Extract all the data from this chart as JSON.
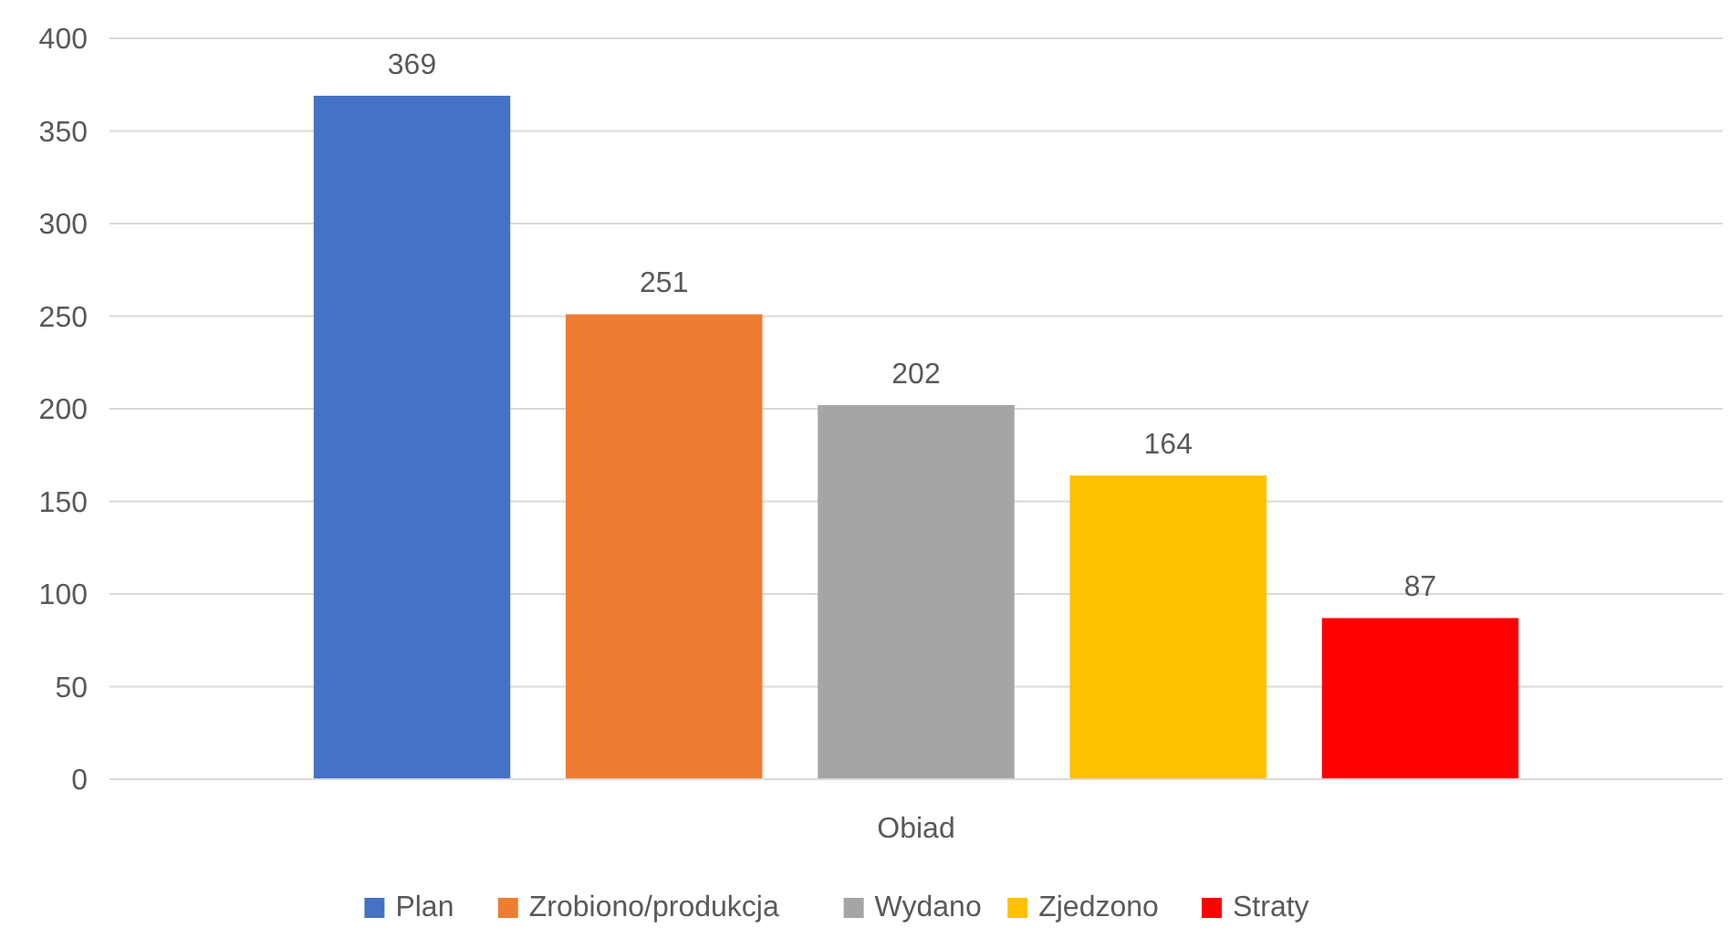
{
  "chart_data": {
    "type": "bar",
    "categories": [
      "Obiad"
    ],
    "series": [
      {
        "name": "Plan",
        "color": "#4472c4",
        "values": [
          369
        ]
      },
      {
        "name": "Zrobiono/produkcja",
        "color": "#ed7d31",
        "values": [
          251
        ]
      },
      {
        "name": "Wydano",
        "color": "#a5a5a5",
        "values": [
          202
        ]
      },
      {
        "name": "Zjedzono",
        "color": "#ffc000",
        "values": [
          164
        ]
      },
      {
        "name": "Straty",
        "color": "#ff0000",
        "values": [
          87
        ]
      }
    ],
    "ylim": [
      0,
      400
    ],
    "yticks": [
      0,
      50,
      100,
      150,
      200,
      250,
      300,
      350,
      400
    ],
    "grid": "y",
    "data_labels": true,
    "legend": "bottom"
  }
}
